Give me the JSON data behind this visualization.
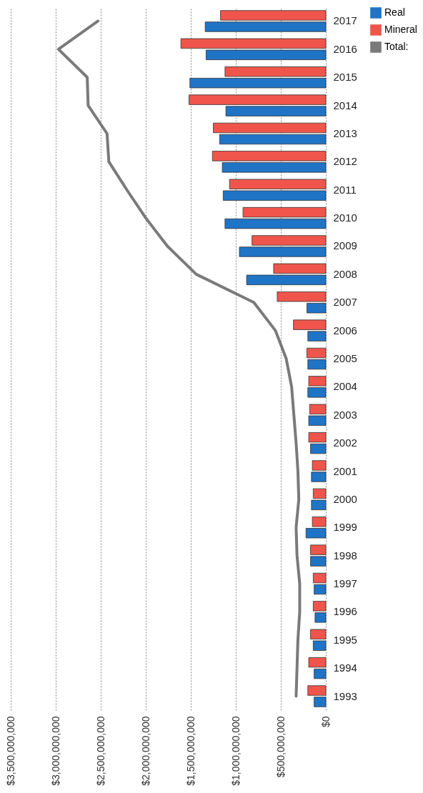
{
  "chart_data": {
    "type": "bar",
    "orientation": "horizontal",
    "categories": [
      "2017",
      "2016",
      "2015",
      "2014",
      "2013",
      "2012",
      "2011",
      "2010",
      "2009",
      "2008",
      "2007",
      "2006",
      "2005",
      "2004",
      "2003",
      "2002",
      "2001",
      "2000",
      "1999",
      "1998",
      "1997",
      "1996",
      "1995",
      "1994",
      "1993"
    ],
    "series": [
      {
        "name": "Real",
        "color": "#1f74c6",
        "values": [
          1340000000,
          1330000000,
          1510000000,
          1110000000,
          1180000000,
          1150000000,
          1140000000,
          1120000000,
          960000000,
          880000000,
          210000000,
          200000000,
          200000000,
          200000000,
          190000000,
          170000000,
          160000000,
          160000000,
          220000000,
          170000000,
          130000000,
          120000000,
          140000000,
          130000000,
          130000000
        ]
      },
      {
        "name": "Mineral",
        "color": "#f0554b",
        "values": [
          1170000000,
          1610000000,
          1120000000,
          1520000000,
          1250000000,
          1260000000,
          1070000000,
          920000000,
          820000000,
          580000000,
          540000000,
          360000000,
          210000000,
          190000000,
          180000000,
          190000000,
          150000000,
          140000000,
          150000000,
          170000000,
          140000000,
          140000000,
          170000000,
          190000000,
          200000000
        ]
      },
      {
        "name": "Total:",
        "type": "line",
        "color": "#7a7a7a",
        "values": [
          2530000000,
          2970000000,
          2650000000,
          2640000000,
          2430000000,
          2410000000,
          2210000000,
          2000000000,
          1760000000,
          1440000000,
          800000000,
          560000000,
          440000000,
          380000000,
          355000000,
          330000000,
          310000000,
          300000000,
          330000000,
          320000000,
          290000000,
          290000000,
          310000000,
          320000000,
          330000000
        ]
      }
    ],
    "xlim": [
      3500000000,
      0
    ],
    "xticks": [
      {
        "value": 3500000000,
        "label": "$3,500,000,000"
      },
      {
        "value": 3000000000,
        "label": "$3,000,000,000"
      },
      {
        "value": 2500000000,
        "label": "$2,500,000,000"
      },
      {
        "value": 2000000000,
        "label": "$2,000,000,000"
      },
      {
        "value": 1500000000,
        "label": "$1,500,000,000"
      },
      {
        "value": 1000000000,
        "label": "$1,000,000,000"
      },
      {
        "value": 500000000,
        "label": "$500,000,000"
      },
      {
        "value": 0,
        "label": "$0"
      }
    ],
    "grid": "x",
    "legend": "right"
  }
}
